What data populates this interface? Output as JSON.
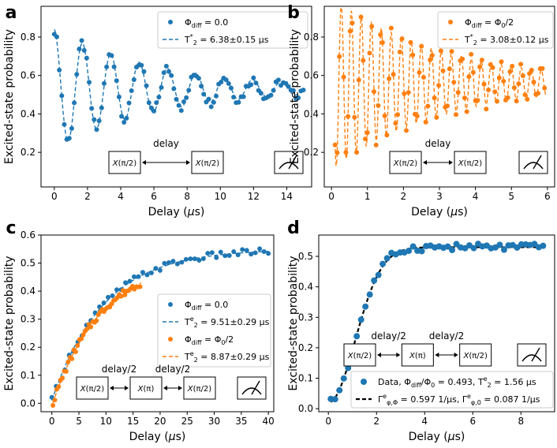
{
  "chart_data": [
    {
      "panel_label": "a",
      "type": "scatter",
      "xlabel": "Delay (μs)",
      "ylabel": "Excited-state probability",
      "xlim": [
        -0.8,
        15.5
      ],
      "ylim": [
        0.02,
        0.96
      ],
      "xticks": [
        0,
        2,
        4,
        6,
        8,
        10,
        12,
        14
      ],
      "yticks": [
        0.2,
        0.4,
        0.6,
        0.8
      ],
      "legend": {
        "position": "top-right",
        "entries": [
          {
            "marker": "dot",
            "color": "#1f77b4",
            "label": "Φdiff = 0.0"
          },
          {
            "marker": "dash",
            "color": "#1f77b4",
            "label": "T2* = 6.38±0.15 μs"
          }
        ]
      },
      "inset": {
        "boxes": [
          "X(π/2)",
          "X(π/2)"
        ],
        "arrows": [
          "delay"
        ],
        "meter": true
      },
      "series": [
        {
          "color": "#1f77b4",
          "model": {
            "kind": "ramsey",
            "offset": 0.53,
            "amp0": 0.31,
            "tau": 6.38,
            "freq": 0.585,
            "phase": 0.05,
            "t0": 0.0,
            "t1": 15.0,
            "step": 0.15
          }
        }
      ]
    },
    {
      "panel_label": "b",
      "type": "scatter",
      "xlabel": "Delay (μs)",
      "ylabel": "Excited-state probability",
      "xlim": [
        -0.2,
        6.2
      ],
      "ylim": [
        0.02,
        0.96
      ],
      "xticks": [
        0,
        1,
        2,
        3,
        4,
        5,
        6
      ],
      "yticks": [
        0.2,
        0.4,
        0.6,
        0.8
      ],
      "legend": {
        "position": "top-right",
        "entries": [
          {
            "marker": "dot",
            "color": "#ff7f0e",
            "label": "Φdiff = Φ0/2"
          },
          {
            "marker": "dash",
            "color": "#ff7f0e",
            "label": "T2* = 3.08±0.12 μs"
          }
        ]
      },
      "inset": {
        "boxes": [
          "X(π/2)",
          "X(π/2)"
        ],
        "arrows": [
          "delay"
        ],
        "meter": true
      },
      "series": [
        {
          "color": "#ff7f0e",
          "model": {
            "kind": "ramsey",
            "offset": 0.56,
            "amp0": 0.45,
            "tau": 3.08,
            "freq": 3.6,
            "phase": 0.1,
            "t0": 0.1,
            "t1": 5.95,
            "step": 0.06
          }
        }
      ]
    },
    {
      "panel_label": "c",
      "type": "scatter",
      "xlabel": "Delay (μs)",
      "ylabel": "Excited-state probability",
      "xlim": [
        -2,
        41
      ],
      "ylim": [
        -0.03,
        0.6
      ],
      "xticks": [
        0,
        5,
        10,
        15,
        20,
        25,
        30,
        35,
        40
      ],
      "yticks": [
        0.0,
        0.1,
        0.2,
        0.3,
        0.4,
        0.5,
        0.6
      ],
      "legend": {
        "position": "right",
        "entries": [
          {
            "marker": "dot",
            "color": "#1f77b4",
            "label": "Φdiff = 0.0"
          },
          {
            "marker": "dash",
            "color": "#1f77b4",
            "label": "T2e = 9.51±0.29 μs"
          },
          {
            "marker": "dot",
            "color": "#ff7f0e",
            "label": "Φdiff = Φ0/2"
          },
          {
            "marker": "dash",
            "color": "#ff7f0e",
            "label": "T2e = 8.87±0.29 μs"
          }
        ]
      },
      "inset": {
        "boxes": [
          "X(π/2)",
          "X(π)",
          "X(π/2)"
        ],
        "arrows": [
          "delay/2",
          "delay/2"
        ],
        "meter": true
      },
      "series": [
        {
          "color": "#1f77b4",
          "model": {
            "kind": "echo",
            "A": 0.54,
            "B": 0.01,
            "tau": 9.51,
            "t0": 0.0,
            "t1": 40.0,
            "step": 0.8
          }
        },
        {
          "color": "#ff7f0e",
          "model": {
            "kind": "echo",
            "A": 0.52,
            "B": -0.01,
            "tau": 8.87,
            "t0": 0.2,
            "t1": 16.5,
            "step": 0.35
          }
        }
      ]
    },
    {
      "panel_label": "d",
      "type": "scatter",
      "xlabel": "Delay (μs)",
      "ylabel": "Excited-state probability",
      "xlim": [
        -0.4,
        9.4
      ],
      "ylim": [
        -0.01,
        0.57
      ],
      "xticks": [
        0,
        2,
        4,
        6,
        8
      ],
      "yticks": [
        0.0,
        0.1,
        0.2,
        0.3,
        0.4,
        0.5
      ],
      "legend": {
        "position": "bottom-right",
        "entries": [
          {
            "marker": "dot",
            "color": "#1f77b4",
            "label": "Data, Φdiff/Φ0 = 0.493, T2e = 1.56 μs"
          },
          {
            "marker": "dash",
            "color": "#000000",
            "label": "Γeφ,Φ = 0.597 1/μs, Γeφ,0 = 0.087 1/μs"
          }
        ]
      },
      "inset": {
        "boxes": [
          "X(π/2)",
          "X(π)",
          "X(π/2)"
        ],
        "arrows": [
          "delay/2",
          "delay/2"
        ],
        "meter": true
      },
      "series": [
        {
          "color": "#1f77b4",
          "fit_color": "#000000",
          "model": {
            "kind": "gauss",
            "A": 0.53,
            "B": 0.02,
            "tau": 1.56,
            "t0": 0.1,
            "t1": 9.0,
            "step": 0.18
          }
        }
      ]
    }
  ]
}
